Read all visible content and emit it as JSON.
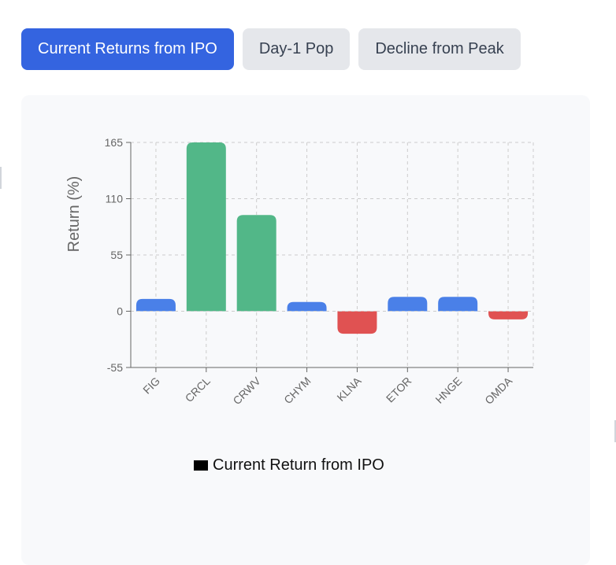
{
  "tabs": [
    {
      "label": "Current Returns from IPO",
      "active": true
    },
    {
      "label": "Day-1 Pop",
      "active": false
    },
    {
      "label": "Decline from Peak",
      "active": false
    }
  ],
  "colors": {
    "positive_large": "#52b788",
    "positive_small": "#4a80e8",
    "negative": "#e05252",
    "axis": "#666666",
    "grid": "#cccccc"
  },
  "chart_data": {
    "type": "bar",
    "categories": [
      "FIG",
      "CRCL",
      "CRWV",
      "CHYM",
      "KLNA",
      "ETOR",
      "HNGE",
      "OMDA"
    ],
    "series": [
      {
        "name": "Current Return from IPO",
        "values": [
          12,
          165,
          94,
          9,
          -22,
          14,
          14,
          -8
        ]
      }
    ],
    "bar_colors": [
      "#4a80e8",
      "#52b788",
      "#52b788",
      "#4a80e8",
      "#e05252",
      "#4a80e8",
      "#4a80e8",
      "#e05252"
    ],
    "ylabel": "Return (%)",
    "xlabel": "",
    "ylim": [
      -55,
      165
    ],
    "yticks": [
      -55,
      0,
      55,
      110,
      165
    ],
    "grid": true,
    "legend": "bottom-center"
  }
}
